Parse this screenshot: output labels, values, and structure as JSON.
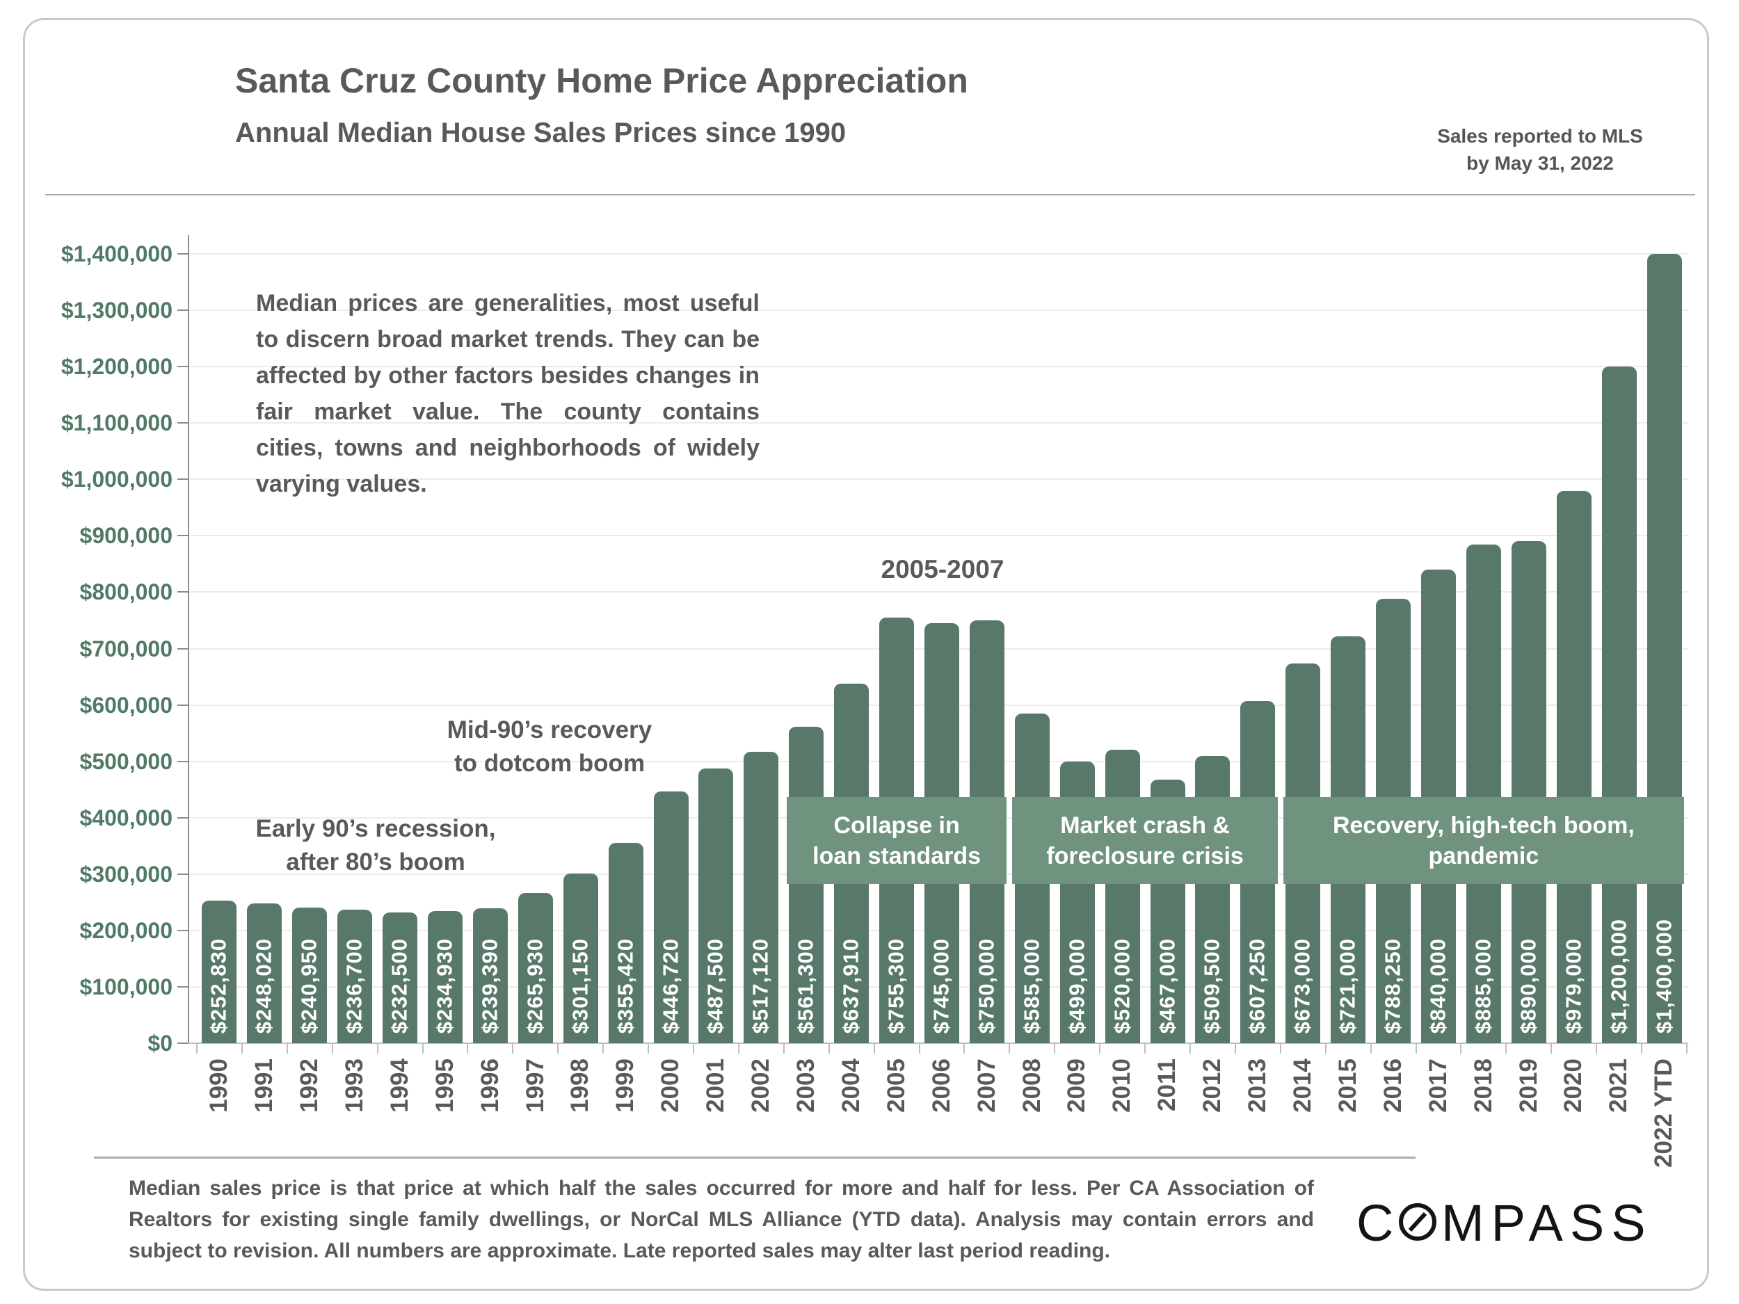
{
  "header": {
    "title": "Santa Cruz County Home Price Appreciation",
    "subtitle": "Annual Median House Sales Prices since 1990",
    "note": "Sales reported to MLS\nby May 31, 2022"
  },
  "chart_data": {
    "type": "bar",
    "title": "Santa Cruz County Home Price Appreciation",
    "subtitle": "Annual Median House Sales Prices since 1990",
    "categories": [
      "1990",
      "1991",
      "1992",
      "1993",
      "1994",
      "1995",
      "1996",
      "1997",
      "1998",
      "1999",
      "2000",
      "2001",
      "2002",
      "2003",
      "2004",
      "2005",
      "2006",
      "2007",
      "2008",
      "2009",
      "2010",
      "2011",
      "2012",
      "2013",
      "2014",
      "2015",
      "2016",
      "2017",
      "2018",
      "2019",
      "2020",
      "2021",
      "2022 YTD"
    ],
    "values": [
      252830,
      248020,
      240950,
      236700,
      232500,
      234930,
      239390,
      265930,
      301150,
      355420,
      446720,
      487500,
      517120,
      561300,
      637910,
      755300,
      745000,
      750000,
      585000,
      499000,
      520000,
      467000,
      509500,
      607250,
      673000,
      721000,
      788250,
      840000,
      885000,
      890000,
      979000,
      1200000,
      1400000
    ],
    "bar_labels": [
      "$252,830",
      "$248,020",
      "$240,950",
      "$236,700",
      "$232,500",
      "$234,930",
      "$239,390",
      "$265,930",
      "$301,150",
      "$355,420",
      "$446,720",
      "$487,500",
      "$517,120",
      "$561,300",
      "$637,910",
      "$755,300",
      "$745,000",
      "$750,000",
      "$585,000",
      "$499,000",
      "$520,000",
      "$467,000",
      "$509,500",
      "$607,250",
      "$673,000",
      "$721,000",
      "$788,250",
      "$840,000",
      "$885,000",
      "$890,000",
      "$979,000",
      "$1,200,000",
      "$1,400,000"
    ],
    "ylim": [
      0,
      1400000
    ],
    "ytick_interval": 100000,
    "ytick_labels": [
      "$0",
      "$100,000",
      "$200,000",
      "$300,000",
      "$400,000",
      "$500,000",
      "$600,000",
      "$700,000",
      "$800,000",
      "$900,000",
      "$1,000,000",
      "$1,100,000",
      "$1,200,000",
      "$1,300,000",
      "$1,400,000"
    ],
    "grid": "horizontal",
    "legend": "none",
    "xlabel": "",
    "ylabel": "",
    "annotations": {
      "note": "Median prices are generalities, most useful to discern broad market trends. They can be affected by other factors besides changes in fair market value. The county contains cities, towns and neighborhoods of widely varying values.",
      "early_recession": "Early 90’s recession,\nafter 80’s boom",
      "mid_90s": "Mid-90’s recovery\nto dotcom boom",
      "peak_years": "2005-2007",
      "bands": [
        {
          "label": "Collapse in\nloan standards",
          "from": "2003",
          "to": "2007"
        },
        {
          "label": "Market crash &\nforeclosure crisis",
          "from": "2008",
          "to": "2013"
        },
        {
          "label": "Recovery, high-tech boom,\npandemic",
          "from": "2014",
          "to": "2022 YTD"
        }
      ]
    },
    "colors": {
      "bar": "#58796A",
      "band": "#70937F",
      "bar_label": "#FFFFFF",
      "ytick_label": "#507A66",
      "xtick_label": "#595959"
    }
  },
  "footer": {
    "disclaimer": "Median sales price is that price at which half the sales occurred for more and half for less. Per CA Association of Realtors for existing single family dwellings, or NorCal MLS Alliance (YTD data). Analysis may contain errors and subject to revision. All numbers are approximate. Late reported sales may alter last period reading.",
    "logo": {
      "brand": "COMPASS",
      "letters_before_needle": "C",
      "letters_after_needle": "MPASS"
    }
  }
}
